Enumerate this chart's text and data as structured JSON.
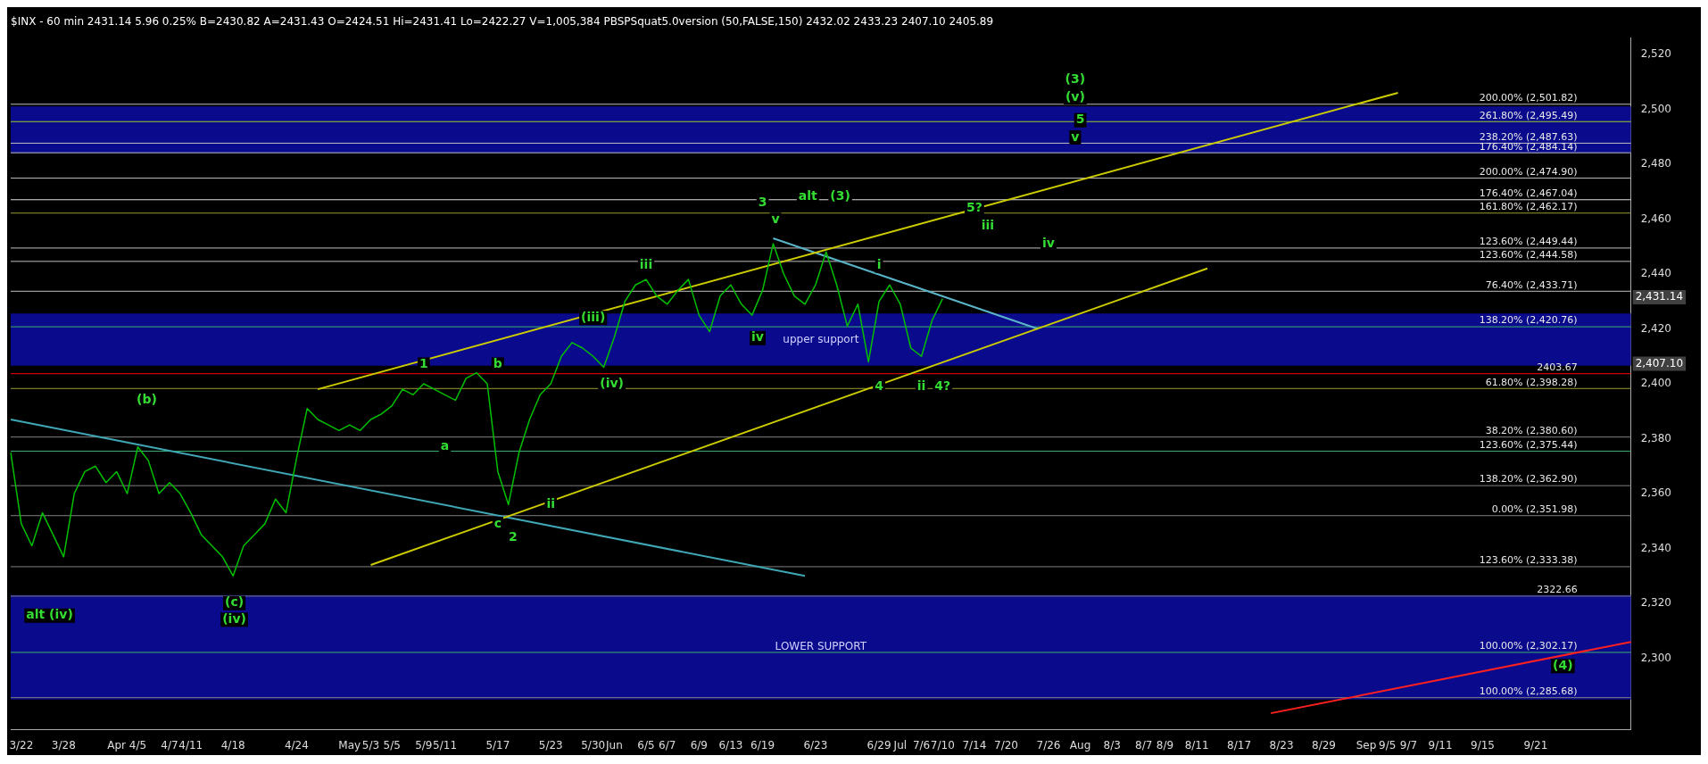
{
  "chart_data": {
    "type": "line",
    "title": "$INX - 60 min 2431.14 5.96 0.25% B=2430.82 A=2431.43 O=2424.51 Hi=2431.41 Lo=2422.27 V=1,005,384 PBSPSquat5.0version (50,FALSE,150) 2432.02 2433.23 2407.10 2405.89",
    "categories": [
      null,
      "3/22",
      null,
      null,
      null,
      "3/28",
      null,
      null,
      null,
      null,
      "Apr",
      null,
      "4/5",
      null,
      null,
      "4/7",
      null,
      "4/11",
      null,
      null,
      null,
      "4/18",
      null,
      null,
      null,
      null,
      null,
      "4/24",
      null,
      null,
      null,
      null,
      "May",
      null,
      "5/3",
      null,
      "5/5",
      null,
      null,
      "5/9",
      null,
      "5/11",
      null,
      null,
      null,
      null,
      "5/17",
      null,
      null,
      null,
      null,
      "5/23",
      null,
      null,
      null,
      "5/30",
      null,
      "Jun",
      null,
      null,
      "6/5",
      null,
      "6/7",
      null,
      null,
      "6/9",
      null,
      null,
      "6/13",
      null,
      null,
      "6/19",
      null,
      null,
      null,
      null,
      "6/23",
      null,
      null,
      null,
      null,
      null,
      "6/29",
      null,
      "Jul",
      null,
      "7/6",
      null,
      "7/10",
      null,
      null,
      "7/14",
      null,
      null,
      "7/20",
      null,
      null,
      null,
      "7/26",
      null,
      null,
      "Aug",
      null,
      null,
      "8/3",
      null,
      null,
      "8/7",
      null,
      "8/9",
      null,
      null,
      "8/11",
      null,
      null,
      null,
      "8/17",
      null,
      null,
      null,
      "8/23",
      null,
      null,
      null,
      "8/29",
      null,
      null,
      null,
      "Sep",
      null,
      "9/5",
      null,
      "9/7",
      null,
      null,
      "9/11",
      null,
      null,
      null,
      "9/15",
      null,
      null,
      null,
      null,
      "9/21",
      null,
      null,
      null,
      null,
      null,
      null,
      null,
      null,
      null
    ],
    "series": [
      {
        "color": "#00c000",
        "values": [
          2375,
          2349,
          2341,
          2353,
          2345,
          2337,
          2360,
          2368,
          2370,
          2364,
          2368,
          2360,
          2377,
          2372,
          2360,
          2364,
          2360,
          2353,
          2345,
          2341,
          2337,
          2330,
          2341,
          2345,
          2349,
          2358,
          2353,
          2373,
          2391,
          2387,
          2385,
          2383,
          2385,
          2383,
          2387,
          2389,
          2392,
          2398,
          2396,
          2400,
          2398,
          2396,
          2394,
          2402,
          2404,
          2400,
          2368,
          2356,
          2375,
          2387,
          2396,
          2400,
          2410,
          2415,
          2413,
          2410,
          2406,
          2417,
          2430,
          2436,
          2438,
          2432,
          2429,
          2434,
          2438,
          2425,
          2419,
          2432,
          2436,
          2429,
          2425,
          2434,
          2451,
          2440,
          2432,
          2429,
          2436,
          2448,
          2436,
          2421,
          2429,
          2408,
          2430,
          2436,
          2429,
          2413,
          2410,
          2423,
          2431,
          null,
          null,
          null,
          null,
          null,
          null,
          null,
          null,
          null,
          null,
          null,
          null,
          null,
          null,
          null,
          null,
          null,
          null,
          null,
          null,
          null,
          null,
          null,
          null,
          null,
          null,
          null,
          null,
          null,
          null,
          null,
          null,
          null,
          null,
          null,
          null,
          null,
          null,
          null,
          null,
          null,
          null,
          null,
          null,
          null,
          null,
          null,
          null,
          null,
          null,
          null,
          null,
          null,
          null,
          null,
          null,
          null,
          null,
          null,
          null,
          null,
          null,
          null,
          null,
          null
        ]
      },
      {
        "color": "#cccc00",
        "values": [
          null,
          null,
          null,
          null,
          null,
          null,
          null,
          null,
          null,
          null,
          null,
          null,
          null,
          null,
          null,
          null,
          null,
          null,
          null,
          null,
          null,
          null,
          null,
          null,
          null,
          null,
          null,
          null,
          null,
          2398,
          null,
          null,
          null,
          null,
          null,
          null,
          null,
          null,
          null,
          null,
          null,
          null,
          null,
          null,
          null,
          null,
          null,
          null,
          null,
          null,
          null,
          null,
          null,
          null,
          null,
          null,
          null,
          null,
          null,
          null,
          null,
          null,
          null,
          null,
          null,
          null,
          null,
          null,
          null,
          null,
          null,
          null,
          null,
          null,
          null,
          null,
          null,
          null,
          null,
          null,
          null,
          null,
          null,
          null,
          null,
          null,
          null,
          null,
          null,
          null,
          null,
          null,
          null,
          null,
          null,
          null,
          null,
          null,
          null,
          null,
          null,
          null,
          null,
          null,
          null,
          null,
          null,
          null,
          null,
          null,
          null,
          null,
          null,
          null,
          null,
          null,
          null,
          null,
          null,
          null,
          null,
          null,
          null,
          null,
          null,
          null,
          null,
          null,
          null,
          null,
          null,
          2506,
          null,
          null,
          null,
          null,
          null,
          null,
          null,
          null,
          null,
          null,
          null,
          null,
          null,
          null,
          null,
          null,
          null,
          null,
          null,
          null,
          null,
          null
        ]
      },
      {
        "color": "#cccc00",
        "values": [
          null,
          null,
          null,
          null,
          null,
          null,
          null,
          null,
          null,
          null,
          null,
          null,
          null,
          null,
          null,
          null,
          null,
          null,
          null,
          null,
          null,
          null,
          null,
          null,
          null,
          null,
          null,
          null,
          null,
          null,
          null,
          null,
          null,
          null,
          2334,
          null,
          null,
          null,
          null,
          null,
          null,
          null,
          null,
          null,
          null,
          null,
          null,
          null,
          null,
          null,
          null,
          null,
          null,
          null,
          null,
          null,
          null,
          null,
          null,
          null,
          null,
          null,
          null,
          null,
          null,
          null,
          null,
          null,
          null,
          null,
          null,
          null,
          null,
          null,
          null,
          null,
          null,
          null,
          null,
          null,
          null,
          null,
          null,
          null,
          null,
          null,
          null,
          null,
          null,
          null,
          null,
          null,
          null,
          null,
          null,
          null,
          null,
          null,
          null,
          null,
          null,
          null,
          null,
          null,
          null,
          null,
          null,
          null,
          null,
          null,
          null,
          null,
          null,
          2442,
          null,
          null,
          null,
          null,
          null,
          null,
          null,
          null,
          null,
          null,
          null,
          null,
          null,
          null,
          null,
          null,
          null,
          null,
          null,
          null,
          null,
          null,
          null,
          null,
          null,
          null,
          null,
          null,
          null,
          null,
          null,
          null,
          null,
          null,
          null,
          null,
          null,
          null,
          null,
          null
        ]
      },
      {
        "color": "#3fa7b5",
        "values": [
          2387,
          null,
          null,
          null,
          null,
          null,
          null,
          null,
          null,
          null,
          null,
          null,
          null,
          null,
          null,
          null,
          null,
          null,
          null,
          null,
          null,
          null,
          null,
          null,
          null,
          null,
          null,
          null,
          null,
          null,
          null,
          null,
          null,
          null,
          null,
          null,
          null,
          null,
          null,
          null,
          null,
          null,
          null,
          null,
          null,
          null,
          null,
          null,
          null,
          null,
          null,
          null,
          null,
          null,
          null,
          null,
          null,
          null,
          null,
          null,
          null,
          null,
          null,
          null,
          null,
          null,
          null,
          null,
          null,
          null,
          null,
          null,
          null,
          null,
          null,
          2330,
          null,
          null,
          null,
          null,
          null,
          null,
          null,
          null,
          null,
          null,
          null,
          null,
          null,
          null,
          null,
          null,
          null,
          null,
          null,
          null,
          null,
          null,
          null,
          null,
          null,
          null,
          null,
          null,
          null,
          null,
          null,
          null,
          null,
          null,
          null,
          null,
          null,
          null,
          null,
          null,
          null,
          null,
          null,
          null,
          null,
          null,
          null,
          null,
          null,
          null,
          null,
          null,
          null,
          null,
          null,
          null,
          null,
          null,
          null,
          null,
          null,
          null,
          null,
          null,
          null,
          null,
          null,
          null,
          null,
          null,
          null,
          null,
          null,
          null,
          null,
          null,
          null,
          null
        ]
      },
      {
        "color": "#5ab4c8",
        "values": [
          null,
          null,
          null,
          null,
          null,
          null,
          null,
          null,
          null,
          null,
          null,
          null,
          null,
          null,
          null,
          null,
          null,
          null,
          null,
          null,
          null,
          null,
          null,
          null,
          null,
          null,
          null,
          null,
          null,
          null,
          null,
          null,
          null,
          null,
          null,
          null,
          null,
          null,
          null,
          null,
          null,
          null,
          null,
          null,
          null,
          null,
          null,
          null,
          null,
          null,
          null,
          null,
          null,
          null,
          null,
          null,
          null,
          null,
          null,
          null,
          null,
          null,
          null,
          null,
          null,
          null,
          null,
          null,
          null,
          null,
          null,
          null,
          2453,
          null,
          null,
          null,
          null,
          null,
          null,
          null,
          null,
          null,
          null,
          null,
          null,
          null,
          null,
          null,
          null,
          null,
          null,
          null,
          null,
          null,
          null,
          null,
          null,
          2420,
          null,
          null,
          null,
          null,
          null,
          null,
          null,
          null,
          null,
          null,
          null,
          null,
          null,
          null,
          null,
          null,
          null,
          null,
          null,
          null,
          null,
          null,
          null,
          null,
          null,
          null,
          null,
          null,
          null,
          null,
          null,
          null,
          null,
          null,
          null,
          null,
          null,
          null,
          null,
          null,
          null,
          null,
          null,
          null,
          null,
          null,
          null,
          null,
          null,
          null,
          null,
          null,
          null,
          null,
          null,
          null
        ]
      },
      {
        "color": "#ff2020",
        "values": [
          null,
          null,
          null,
          null,
          null,
          null,
          null,
          null,
          null,
          null,
          null,
          null,
          null,
          null,
          null,
          null,
          null,
          null,
          null,
          null,
          null,
          null,
          null,
          null,
          null,
          null,
          null,
          null,
          null,
          null,
          null,
          null,
          null,
          null,
          null,
          null,
          null,
          null,
          null,
          null,
          null,
          null,
          null,
          null,
          null,
          null,
          null,
          null,
          null,
          null,
          null,
          null,
          null,
          null,
          null,
          null,
          null,
          null,
          null,
          null,
          null,
          null,
          null,
          null,
          null,
          null,
          null,
          null,
          null,
          null,
          null,
          null,
          null,
          null,
          null,
          null,
          null,
          null,
          null,
          null,
          null,
          null,
          null,
          null,
          null,
          null,
          null,
          null,
          null,
          null,
          null,
          null,
          null,
          null,
          null,
          null,
          null,
          null,
          null,
          null,
          null,
          null,
          null,
          null,
          null,
          null,
          null,
          null,
          null,
          null,
          null,
          null,
          null,
          null,
          null,
          null,
          null,
          null,
          null,
          2280,
          null,
          null,
          null,
          null,
          null,
          null,
          null,
          null,
          null,
          null,
          null,
          null,
          null,
          null,
          null,
          null,
          null,
          null,
          null,
          null,
          null,
          null,
          null,
          null,
          null,
          null,
          null,
          null,
          null,
          null,
          null,
          null,
          null,
          2306
        ]
      }
    ],
    "ylim": [
      2274,
      2526
    ],
    "yticks": [
      {
        "value": 2300,
        "label": "2,300"
      },
      {
        "value": 2320,
        "label": "2,320"
      },
      {
        "value": 2340,
        "label": "2,340"
      },
      {
        "value": 2360,
        "label": "2,360"
      },
      {
        "value": 2380,
        "label": "2,380"
      },
      {
        "value": 2400,
        "label": "2,400"
      },
      {
        "value": 2420,
        "label": "2,420"
      },
      {
        "value": 2440,
        "label": "2,440"
      },
      {
        "value": 2460,
        "label": "2,460"
      },
      {
        "value": 2480,
        "label": "2,480"
      },
      {
        "value": 2500,
        "label": "2,500"
      },
      {
        "value": 2520,
        "label": "2,520"
      }
    ],
    "bands": [
      {
        "axis": "y",
        "from": 2406.6,
        "to": 2425.6,
        "label": "upper support",
        "color": "#0a0a8c"
      },
      {
        "axis": "y",
        "from": 2484,
        "to": 2501,
        "color": "#0a0a8c"
      },
      {
        "axis": "y",
        "from": 2285,
        "to": 2323,
        "label": "LOWER SUPPORT",
        "color": "#0a0a8c"
      }
    ],
    "ref_lines": [
      {
        "axis": "y",
        "value": 2501.82,
        "label": "200.00% (2,501.82)",
        "color": "#c0c0c0"
      },
      {
        "axis": "y",
        "value": 2495.49,
        "label": "261.80% (2,495.49)",
        "color": "#9acd32"
      },
      {
        "axis": "y",
        "value": 2487.63,
        "label": "238.20% (2,487.63)",
        "color": "#c0c0c0"
      },
      {
        "axis": "y",
        "value": 2484.14,
        "label": "176.40% (2,484.14)",
        "color": "#c0c0c0"
      },
      {
        "axis": "y",
        "value": 2474.9,
        "label": "200.00% (2,474.90)",
        "color": "#c0c0c0"
      },
      {
        "axis": "y",
        "value": 2467.04,
        "label": "176.40% (2,467.04)",
        "color": "#e0e0e0"
      },
      {
        "axis": "y",
        "value": 2462.17,
        "label": "161.80% (2,462.17)",
        "color": "#9a9a30"
      },
      {
        "axis": "y",
        "value": 2449.44,
        "label": "123.60% (2,449.44)",
        "color": "#c0c0c0"
      },
      {
        "axis": "y",
        "value": 2444.58,
        "label": "123.60% (2,444.58)",
        "color": "#c0c0c0"
      },
      {
        "axis": "y",
        "value": 2433.71,
        "label": "76.40% (2,433.71)",
        "color": "#c0c0c0"
      },
      {
        "axis": "y",
        "value": 2420.76,
        "label": "138.20% (2,420.76)",
        "color": "#3cb371"
      },
      {
        "axis": "y",
        "value": 2403.67,
        "label": "2403.67",
        "color": "#ff0000"
      },
      {
        "axis": "y",
        "value": 2398.28,
        "label": "61.80% (2,398.28)",
        "color": "#9a9a30"
      },
      {
        "axis": "y",
        "value": 2380.6,
        "label": "38.20% (2,380.60)",
        "color": "#808080"
      },
      {
        "axis": "y",
        "value": 2375.44,
        "label": "123.60% (2,375.44)",
        "color": "#3cb371"
      },
      {
        "axis": "y",
        "value": 2362.9,
        "label": "138.20% (2,362.90)",
        "color": "#808080"
      },
      {
        "axis": "y",
        "value": 2351.98,
        "label": "0.00% (2,351.98)",
        "color": "#808080"
      },
      {
        "axis": "y",
        "value": 2333.38,
        "label": "123.60% (2,333.38)",
        "color": "#808080"
      },
      {
        "axis": "y",
        "value": 2322.66,
        "label": "2322.66",
        "color": "#808080"
      },
      {
        "axis": "y",
        "value": 2302.17,
        "label": "100.00% (2,302.17)",
        "color": "#3cb371"
      },
      {
        "axis": "y",
        "value": 2285.68,
        "label": "100.00% (2,285.68)",
        "color": "#808080"
      }
    ],
    "annotations": [
      "alt (iv)",
      "(b)",
      "(c)",
      "(iv)",
      {
        "text": "1",
        "x": "5/9",
        "y": 2407
      },
      {
        "text": "a",
        "x": "5/11",
        "y": 2377
      },
      {
        "text": "b",
        "x": "5/17",
        "y": 2407
      },
      {
        "text": "c",
        "x": "5/17",
        "y": 2349
      },
      "2",
      {
        "text": "ii",
        "x": "5/23",
        "y": 2356
      },
      {
        "text": "(iii)",
        "x": "5/30",
        "y": 2424
      },
      "(iv)",
      {
        "text": "iii",
        "x": "6/5",
        "y": 2443
      },
      "iv",
      {
        "text": "3",
        "x": "6/19",
        "y": 2466
      },
      "v",
      "alt",
      {
        "text": "i",
        "x": "6/29",
        "y": 2443
      },
      {
        "text": "4",
        "x": "6/29",
        "y": 2399
      },
      {
        "text": "ii",
        "x": "7/6",
        "y": 2399
      },
      {
        "text": "4?",
        "x": "7/10",
        "y": 2399
      },
      {
        "text": "5?",
        "x": "7/14",
        "y": 2464
      },
      "iii",
      {
        "text": "iv",
        "x": "7/26",
        "y": 2451
      },
      "(3)",
      "(v)",
      {
        "text": "5",
        "x": "Aug",
        "y": 2496
      },
      "v",
      "(4)",
      "2,431.14",
      "2,407.10",
      "(3)"
    ],
    "legend": false,
    "grid": false,
    "marker": "none"
  }
}
